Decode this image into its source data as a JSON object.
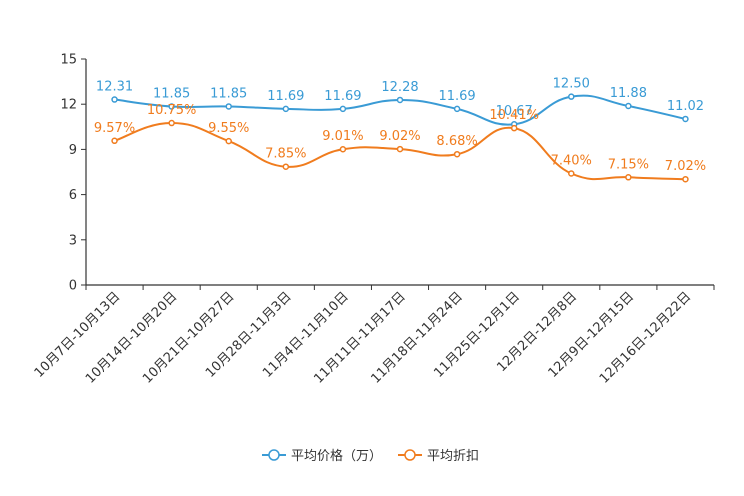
{
  "chart_data": {
    "type": "line",
    "categories": [
      "10月7日-10月13日",
      "10月14日-10月20日",
      "10月21日-10月27日",
      "10月28日-11月3日",
      "11月4日-11月10日",
      "11月11日-11月17日",
      "11月18日-11月24日",
      "11月25日-12月1日",
      "12月2日-12月8日",
      "12月9日-12月15日",
      "12月16日-12月22日"
    ],
    "series": [
      {
        "name": "平均价格（万）",
        "color": "#3a9bd5",
        "values": [
          12.31,
          11.85,
          11.85,
          11.69,
          11.69,
          12.28,
          11.69,
          10.67,
          12.5,
          11.88,
          11.02
        ],
        "labels": [
          "12.31",
          "11.85",
          "11.85",
          "11.69",
          "11.69",
          "12.28",
          "11.69",
          "10.67",
          "12.50",
          "11.88",
          "11.02"
        ]
      },
      {
        "name": "平均折扣",
        "color": "#f07c1e",
        "values": [
          9.57,
          10.75,
          9.55,
          7.85,
          9.01,
          9.02,
          8.68,
          10.41,
          7.4,
          7.15,
          7.02
        ],
        "labels": [
          "9.57%",
          "10.75%",
          "9.55%",
          "7.85%",
          "9.01%",
          "9.02%",
          "8.68%",
          "10.41%",
          "7.40%",
          "7.15%",
          "7.02%"
        ]
      }
    ],
    "y_ticks": [
      "0",
      "3",
      "6",
      "9",
      "12",
      "15"
    ],
    "ylim": [
      0,
      15
    ],
    "title": "",
    "xlabel": "",
    "ylabel": "",
    "legend_position": "bottom-center",
    "grid": false
  }
}
